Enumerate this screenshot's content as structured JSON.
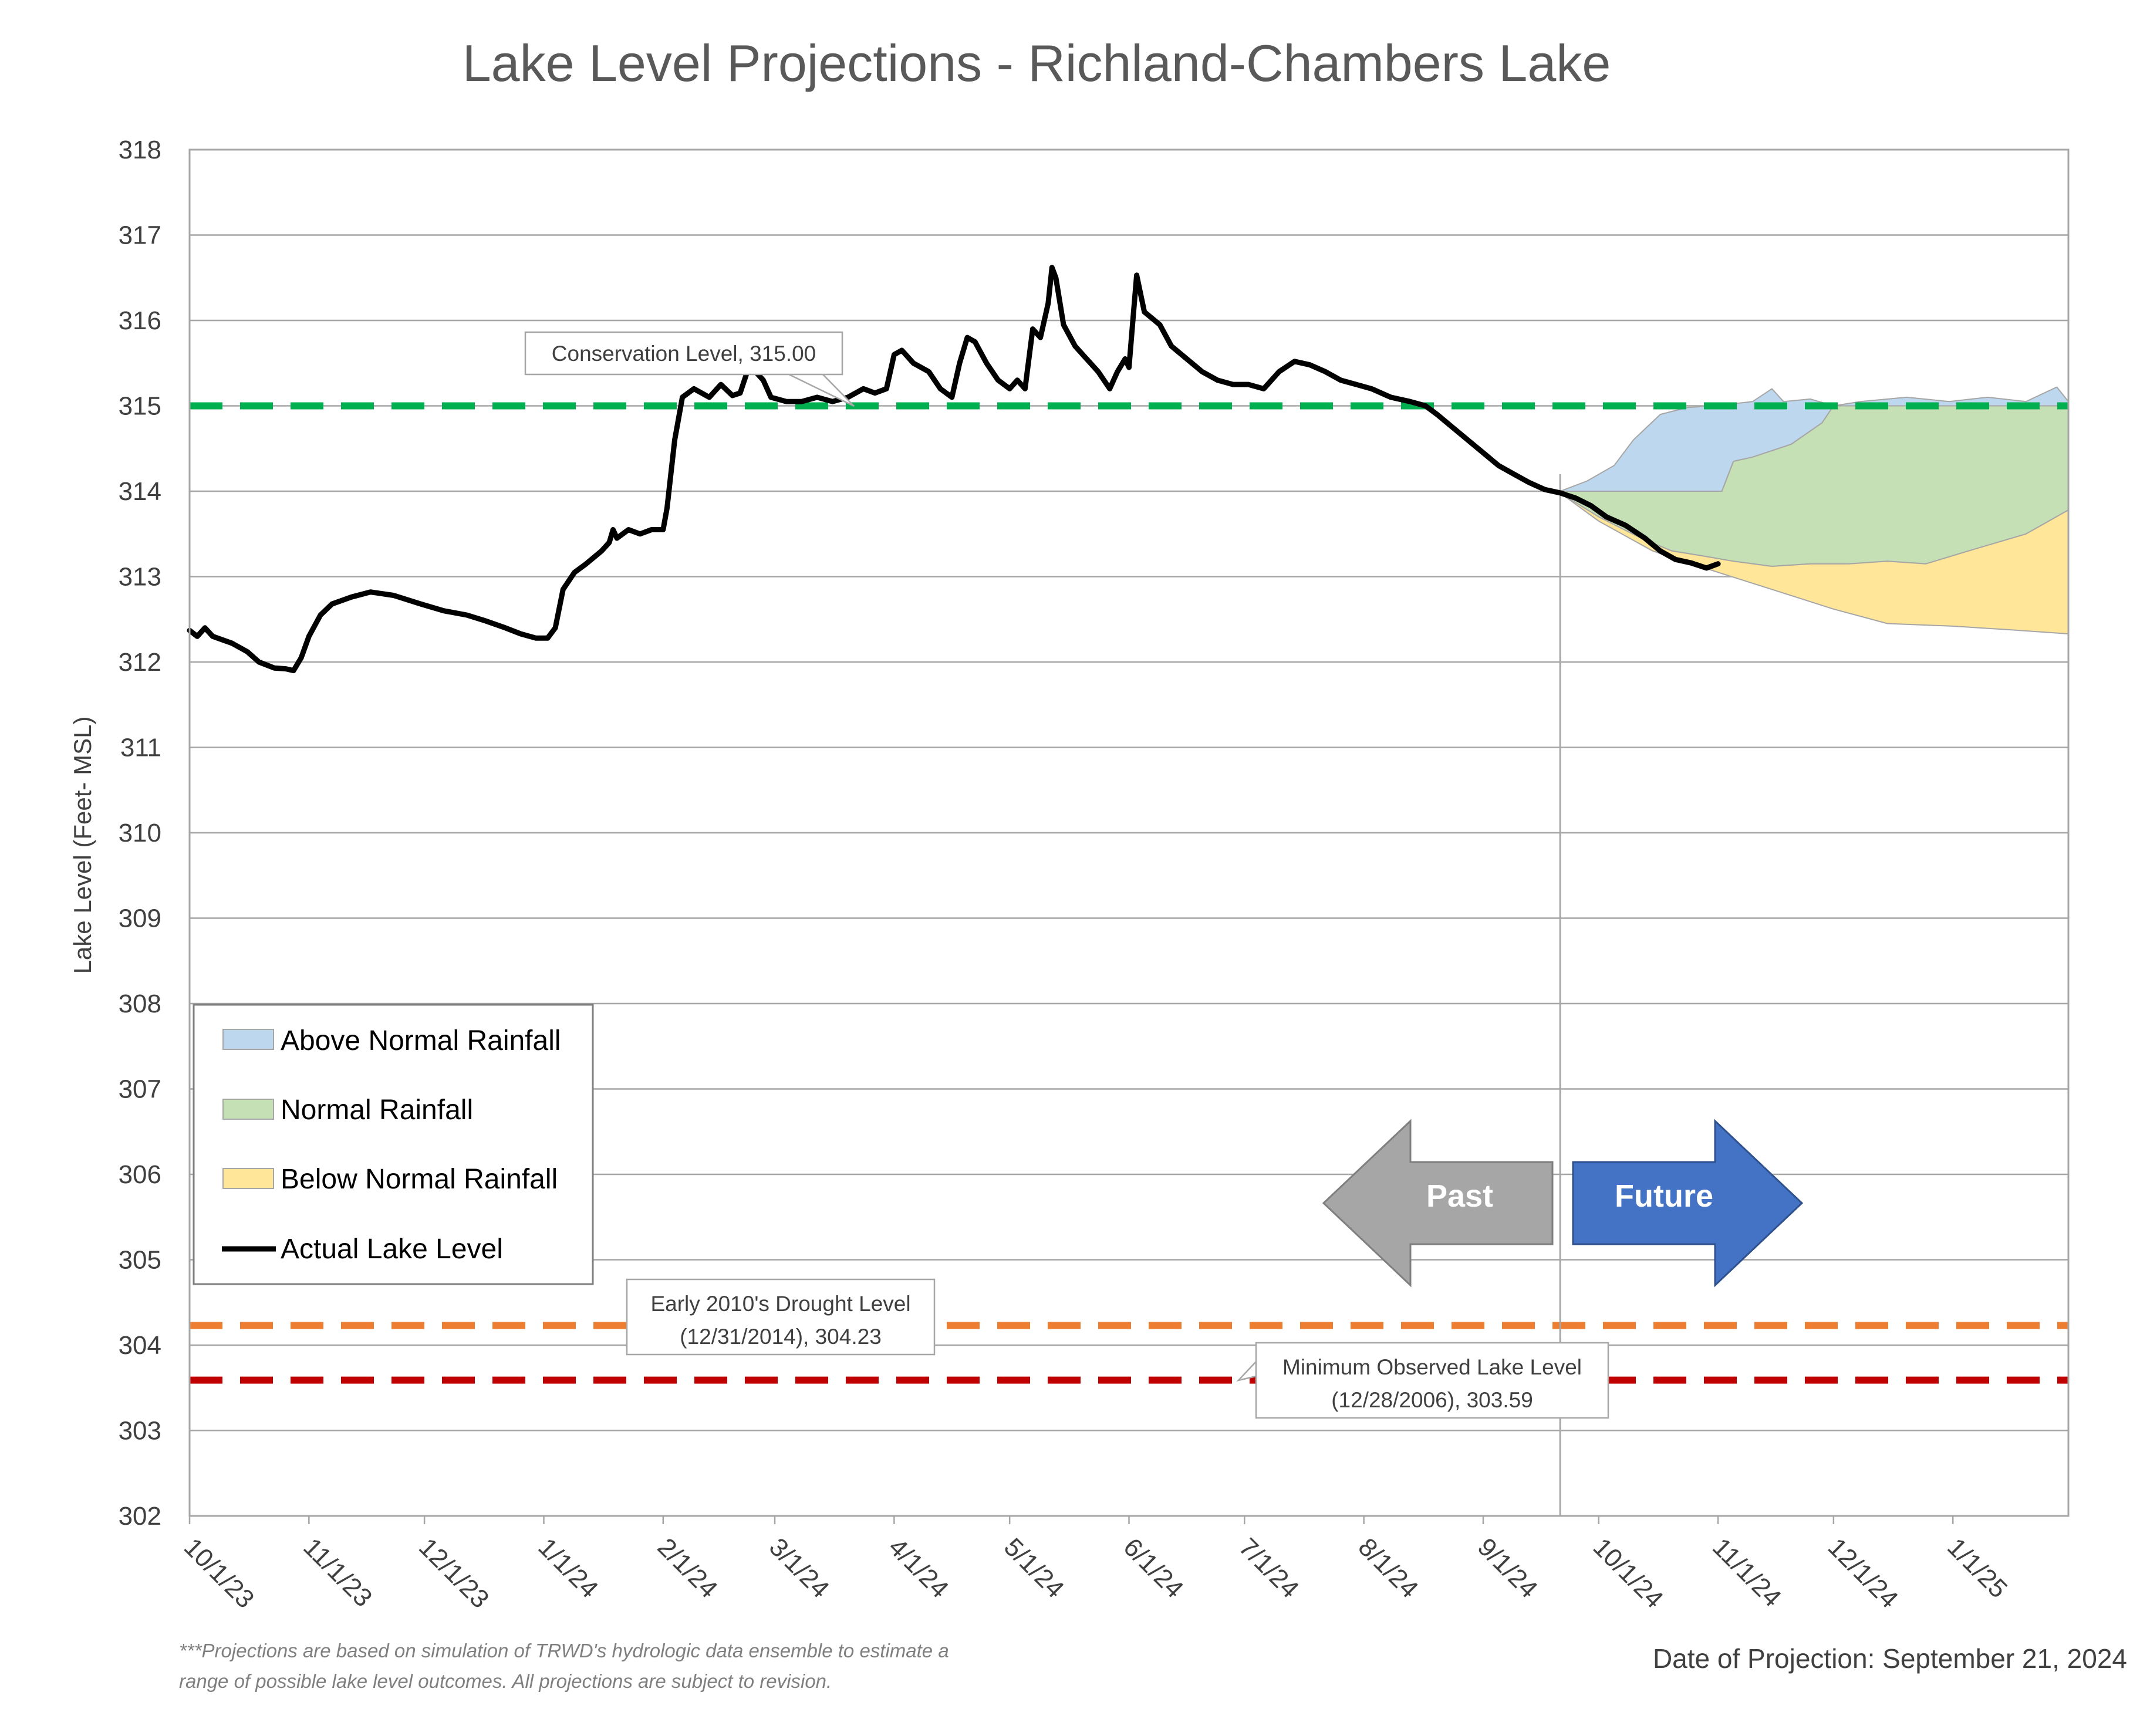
{
  "chart_data": {
    "type": "line",
    "title": "Lake Level Projections - Richland-Chambers Lake",
    "ylabel": "Lake Level (Feet- MSL)",
    "xlabel": "",
    "ylim": [
      302,
      318
    ],
    "yticks": [
      302,
      303,
      304,
      305,
      306,
      307,
      308,
      309,
      310,
      311,
      312,
      313,
      314,
      315,
      316,
      317,
      318
    ],
    "x_range": [
      "2023-10-01",
      "2025-01-31"
    ],
    "x_tick_dates": [
      "2023-10-01",
      "2023-11-01",
      "2023-12-01",
      "2024-01-01",
      "2024-02-01",
      "2024-03-01",
      "2024-04-01",
      "2024-05-01",
      "2024-06-01",
      "2024-07-01",
      "2024-08-01",
      "2024-09-01",
      "2024-10-01",
      "2024-11-01",
      "2024-12-01",
      "2025-01-01"
    ],
    "x_tick_labels": [
      "10/1/23",
      "11/1/23",
      "12/1/23",
      "1/1/24",
      "2/1/24",
      "3/1/24",
      "4/1/24",
      "5/1/24",
      "6/1/24",
      "7/1/24",
      "8/1/24",
      "9/1/24",
      "10/1/24",
      "11/1/24",
      "12/1/24",
      "1/1/25"
    ],
    "grid": "horizontal",
    "projection_date": "2024-09-21",
    "reference_lines": [
      {
        "value": 315.0,
        "color": "#00b050",
        "label": "Conservation Level, 315.00"
      },
      {
        "value": 304.23,
        "color": "#ed7d31",
        "label_line1": "Early 2010's Drought Level",
        "label_line2": "(12/31/2014), 304.23"
      },
      {
        "value": 303.59,
        "color": "#c00000",
        "label_line1": "Minimum Observed Lake Level",
        "label_line2": "(12/28/2006), 303.59"
      }
    ],
    "series": [
      {
        "name": "Actual Lake Level",
        "color": "#000000",
        "points": [
          [
            "2023-10-01",
            312.37
          ],
          [
            "2023-10-03",
            312.3
          ],
          [
            "2023-10-05",
            312.4
          ],
          [
            "2023-10-07",
            312.3
          ],
          [
            "2023-10-12",
            312.22
          ],
          [
            "2023-10-16",
            312.12
          ],
          [
            "2023-10-19",
            312.0
          ],
          [
            "2023-10-23",
            311.93
          ],
          [
            "2023-10-26",
            311.92
          ],
          [
            "2023-10-28",
            311.9
          ],
          [
            "2023-10-30",
            312.05
          ],
          [
            "2023-11-01",
            312.3
          ],
          [
            "2023-11-04",
            312.55
          ],
          [
            "2023-11-07",
            312.68
          ],
          [
            "2023-11-12",
            312.76
          ],
          [
            "2023-11-17",
            312.82
          ],
          [
            "2023-11-23",
            312.78
          ],
          [
            "2023-11-30",
            312.68
          ],
          [
            "2023-12-06",
            312.6
          ],
          [
            "2023-12-12",
            312.55
          ],
          [
            "2023-12-17",
            312.48
          ],
          [
            "2023-12-22",
            312.4
          ],
          [
            "2023-12-26",
            312.33
          ],
          [
            "2023-12-30",
            312.28
          ],
          [
            "2024-01-02",
            312.28
          ],
          [
            "2024-01-04",
            312.4
          ],
          [
            "2024-01-06",
            312.85
          ],
          [
            "2024-01-09",
            313.05
          ],
          [
            "2024-01-12",
            313.15
          ],
          [
            "2024-01-16",
            313.3
          ],
          [
            "2024-01-18",
            313.4
          ],
          [
            "2024-01-19",
            313.55
          ],
          [
            "2024-01-20",
            313.45
          ],
          [
            "2024-01-23",
            313.55
          ],
          [
            "2024-01-26",
            313.5
          ],
          [
            "2024-01-29",
            313.55
          ],
          [
            "2024-02-01",
            313.55
          ],
          [
            "2024-02-02",
            313.8
          ],
          [
            "2024-02-04",
            314.6
          ],
          [
            "2024-02-06",
            315.1
          ],
          [
            "2024-02-09",
            315.2
          ],
          [
            "2024-02-13",
            315.1
          ],
          [
            "2024-02-16",
            315.25
          ],
          [
            "2024-02-19",
            315.12
          ],
          [
            "2024-02-21",
            315.15
          ],
          [
            "2024-02-23",
            315.42
          ],
          [
            "2024-02-25",
            315.4
          ],
          [
            "2024-02-27",
            315.3
          ],
          [
            "2024-02-29",
            315.1
          ],
          [
            "2024-03-04",
            315.05
          ],
          [
            "2024-03-08",
            315.05
          ],
          [
            "2024-03-12",
            315.1
          ],
          [
            "2024-03-16",
            315.05
          ],
          [
            "2024-03-20",
            315.1
          ],
          [
            "2024-03-24",
            315.2
          ],
          [
            "2024-03-27",
            315.15
          ],
          [
            "2024-03-30",
            315.2
          ],
          [
            "2024-04-01",
            315.6
          ],
          [
            "2024-04-03",
            315.65
          ],
          [
            "2024-04-06",
            315.5
          ],
          [
            "2024-04-10",
            315.4
          ],
          [
            "2024-04-13",
            315.2
          ],
          [
            "2024-04-16",
            315.1
          ],
          [
            "2024-04-18",
            315.5
          ],
          [
            "2024-04-20",
            315.8
          ],
          [
            "2024-04-22",
            315.75
          ],
          [
            "2024-04-25",
            315.5
          ],
          [
            "2024-04-28",
            315.3
          ],
          [
            "2024-05-01",
            315.2
          ],
          [
            "2024-05-03",
            315.3
          ],
          [
            "2024-05-05",
            315.2
          ],
          [
            "2024-05-07",
            315.9
          ],
          [
            "2024-05-09",
            315.8
          ],
          [
            "2024-05-11",
            316.2
          ],
          [
            "2024-05-12",
            316.62
          ],
          [
            "2024-05-13",
            316.5
          ],
          [
            "2024-05-15",
            315.95
          ],
          [
            "2024-05-18",
            315.7
          ],
          [
            "2024-05-21",
            315.55
          ],
          [
            "2024-05-24",
            315.4
          ],
          [
            "2024-05-27",
            315.2
          ],
          [
            "2024-05-29",
            315.4
          ],
          [
            "2024-05-31",
            315.55
          ],
          [
            "2024-06-01",
            315.45
          ],
          [
            "2024-06-02",
            316.0
          ],
          [
            "2024-06-03",
            316.53
          ],
          [
            "2024-06-05",
            316.1
          ],
          [
            "2024-06-09",
            315.95
          ],
          [
            "2024-06-12",
            315.7
          ],
          [
            "2024-06-16",
            315.55
          ],
          [
            "2024-06-20",
            315.4
          ],
          [
            "2024-06-24",
            315.3
          ],
          [
            "2024-06-28",
            315.25
          ],
          [
            "2024-07-02",
            315.25
          ],
          [
            "2024-07-06",
            315.2
          ],
          [
            "2024-07-10",
            315.4
          ],
          [
            "2024-07-14",
            315.52
          ],
          [
            "2024-07-18",
            315.48
          ],
          [
            "2024-07-22",
            315.4
          ],
          [
            "2024-07-26",
            315.3
          ],
          [
            "2024-07-30",
            315.25
          ],
          [
            "2024-08-03",
            315.2
          ],
          [
            "2024-08-08",
            315.1
          ],
          [
            "2024-08-13",
            315.05
          ],
          [
            "2024-08-17",
            315.0
          ],
          [
            "2024-08-20",
            314.9
          ],
          [
            "2024-08-24",
            314.75
          ],
          [
            "2024-08-28",
            314.6
          ],
          [
            "2024-09-01",
            314.45
          ],
          [
            "2024-09-05",
            314.3
          ],
          [
            "2024-09-09",
            314.2
          ],
          [
            "2024-09-13",
            314.1
          ],
          [
            "2024-09-17",
            314.02
          ],
          [
            "2024-09-21",
            313.98
          ],
          [
            "2024-09-25",
            313.92
          ],
          [
            "2024-09-29",
            313.83
          ],
          [
            "2024-10-03",
            313.7
          ],
          [
            "2024-10-08",
            313.6
          ],
          [
            "2024-10-13",
            313.45
          ],
          [
            "2024-10-17",
            313.3
          ],
          [
            "2024-10-21",
            313.2
          ],
          [
            "2024-10-25",
            313.16
          ],
          [
            "2024-10-29",
            313.1
          ],
          [
            "2024-11-01",
            313.15
          ]
        ]
      },
      {
        "name": "Above Normal Rainfall",
        "type": "area",
        "color": "#bdd7ee",
        "upper": [
          [
            "2024-09-21",
            314.0
          ],
          [
            "2024-09-28",
            314.12
          ],
          [
            "2024-10-05",
            314.3
          ],
          [
            "2024-10-10",
            314.6
          ],
          [
            "2024-10-17",
            314.9
          ],
          [
            "2024-10-24",
            314.98
          ],
          [
            "2024-10-31",
            315.0
          ],
          [
            "2024-11-10",
            315.05
          ],
          [
            "2024-11-15",
            315.2
          ],
          [
            "2024-11-18",
            315.05
          ],
          [
            "2024-11-25",
            315.08
          ],
          [
            "2024-12-01",
            315.0
          ],
          [
            "2024-12-08",
            315.05
          ],
          [
            "2024-12-20",
            315.1
          ],
          [
            "2024-12-31",
            315.05
          ],
          [
            "2025-01-10",
            315.1
          ],
          [
            "2025-01-20",
            315.05
          ],
          [
            "2025-01-28",
            315.22
          ],
          [
            "2025-01-31",
            315.05
          ]
        ],
        "lower": [
          [
            "2024-09-21",
            314.0
          ],
          [
            "2024-10-05",
            314.0
          ],
          [
            "2024-10-20",
            314.0
          ],
          [
            "2024-11-02",
            314.0
          ],
          [
            "2024-11-05",
            314.35
          ],
          [
            "2024-11-10",
            314.4
          ],
          [
            "2024-11-20",
            314.55
          ],
          [
            "2024-11-28",
            314.8
          ],
          [
            "2024-12-01",
            315.0
          ],
          [
            "2025-01-31",
            315.0
          ]
        ]
      },
      {
        "name": "Normal Rainfall",
        "type": "area",
        "color": "#c5e0b4",
        "upper": [
          [
            "2024-09-21",
            314.0
          ],
          [
            "2024-10-05",
            314.0
          ],
          [
            "2024-10-20",
            314.0
          ],
          [
            "2024-11-02",
            314.0
          ],
          [
            "2024-11-05",
            314.35
          ],
          [
            "2024-11-10",
            314.4
          ],
          [
            "2024-11-20",
            314.55
          ],
          [
            "2024-11-28",
            314.8
          ],
          [
            "2024-12-01",
            315.0
          ],
          [
            "2025-01-31",
            315.0
          ]
        ],
        "lower": [
          [
            "2024-09-21",
            313.98
          ],
          [
            "2024-10-01",
            313.7
          ],
          [
            "2024-10-12",
            313.45
          ],
          [
            "2024-10-20",
            313.3
          ],
          [
            "2024-10-27",
            313.25
          ],
          [
            "2024-11-05",
            313.18
          ],
          [
            "2024-11-15",
            313.12
          ],
          [
            "2024-11-25",
            313.15
          ],
          [
            "2024-12-05",
            313.15
          ],
          [
            "2024-12-15",
            313.18
          ],
          [
            "2024-12-25",
            313.15
          ],
          [
            "2025-01-05",
            313.3
          ],
          [
            "2025-01-20",
            313.5
          ],
          [
            "2025-01-31",
            313.78
          ]
        ]
      },
      {
        "name": "Below Normal Rainfall",
        "type": "area",
        "color": "#ffe699",
        "upper": [
          [
            "2024-09-21",
            313.98
          ],
          [
            "2024-10-01",
            313.7
          ],
          [
            "2024-10-12",
            313.45
          ],
          [
            "2024-10-20",
            313.3
          ],
          [
            "2024-10-27",
            313.25
          ],
          [
            "2024-11-05",
            313.18
          ],
          [
            "2024-11-15",
            313.12
          ],
          [
            "2024-11-25",
            313.15
          ],
          [
            "2024-12-05",
            313.15
          ],
          [
            "2024-12-15",
            313.18
          ],
          [
            "2024-12-25",
            313.15
          ],
          [
            "2025-01-05",
            313.3
          ],
          [
            "2025-01-20",
            313.5
          ],
          [
            "2025-01-31",
            313.78
          ]
        ],
        "lower": [
          [
            "2024-09-21",
            313.98
          ],
          [
            "2024-10-01",
            313.65
          ],
          [
            "2024-10-15",
            313.3
          ],
          [
            "2024-11-01",
            313.05
          ],
          [
            "2024-11-15",
            312.85
          ],
          [
            "2024-12-01",
            312.62
          ],
          [
            "2024-12-15",
            312.45
          ],
          [
            "2025-01-01",
            312.42
          ],
          [
            "2025-01-15",
            312.38
          ],
          [
            "2025-01-31",
            312.33
          ]
        ]
      }
    ],
    "legend": {
      "position": "bottom-left",
      "entries": [
        "Above Normal Rainfall",
        "Normal Rainfall",
        "Below Normal Rainfall",
        "Actual Lake Level"
      ]
    },
    "arrows": {
      "past_label": "Past",
      "future_label": "Future",
      "past_color": "#a6a6a6",
      "future_color": "#4472c4"
    },
    "footnote_line1": "***Projections are based on simulation of TRWD's hydrologic data ensemble to estimate a",
    "footnote_line2": "range of possible lake level outcomes.  All projections are subject to revision.",
    "projection_note": "Date of Projection: September 21, 2024"
  }
}
